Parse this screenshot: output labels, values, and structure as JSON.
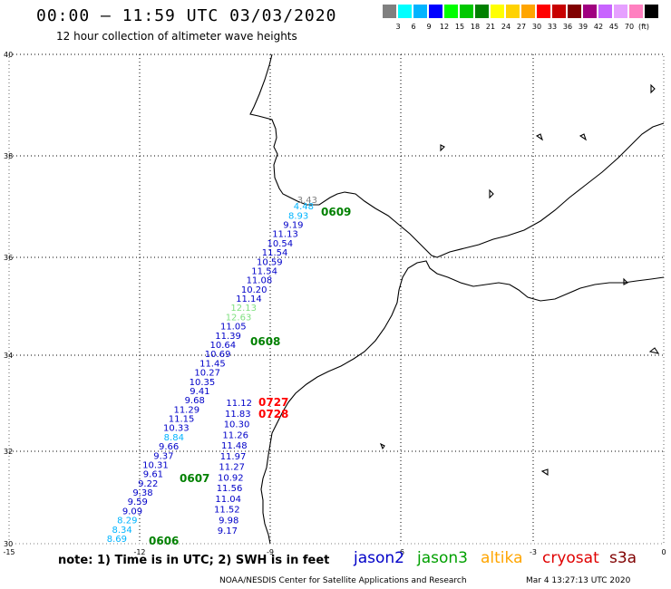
{
  "header": {
    "title": "00:00 – 11:59 UTC 03/03/2020",
    "subtitle": "12 hour collection of altimeter wave heights"
  },
  "colorbar": {
    "colors": [
      "#808080",
      "#00ffff",
      "#00b4ff",
      "#0000ff",
      "#00ff00",
      "#00c800",
      "#008000",
      "#ffff00",
      "#ffd200",
      "#ffa500",
      "#ff0000",
      "#c80000",
      "#800000",
      "#a00080",
      "#c864ff",
      "#e6a0ff",
      "#ff80c0",
      "#000000"
    ],
    "labels": [
      "3",
      "6",
      "9",
      "12",
      "15",
      "18",
      "21",
      "24",
      "27",
      "30",
      "33",
      "36",
      "39",
      "42",
      "45",
      "70",
      "(ft)"
    ]
  },
  "axes": {
    "lat_labels": [
      "40",
      "38",
      "36",
      "34",
      "32",
      "30"
    ],
    "lon_labels": [
      "-15",
      "-12",
      "-9",
      "-6",
      "-3",
      "0"
    ]
  },
  "map_data": {
    "lon_range": [
      -15,
      0
    ],
    "lat_range": [
      30,
      40
    ],
    "left_track": [
      {
        "lat": 36.92,
        "value": "3.43",
        "color": "#808080"
      },
      {
        "lat": 36.78,
        "value": "4.48",
        "color": "#00b4ff"
      },
      {
        "lat": 36.58,
        "value": "8.93",
        "color": "#00b4ff"
      },
      {
        "lat": 36.38,
        "value": "9.19",
        "color": "#0000c8"
      },
      {
        "lat": 36.18,
        "value": "11.13",
        "color": "#0000c8"
      },
      {
        "lat": 35.98,
        "value": "10.54",
        "color": "#0000c8"
      },
      {
        "lat": 35.78,
        "value": "11.54",
        "color": "#0000c8"
      },
      {
        "lat": 35.58,
        "value": "10.59",
        "color": "#0000c8"
      },
      {
        "lat": 35.38,
        "value": "11.54",
        "color": "#0000c8"
      },
      {
        "lat": 35.18,
        "value": "11.08",
        "color": "#0000c8"
      },
      {
        "lat": 34.98,
        "value": "10.20",
        "color": "#0000c8"
      },
      {
        "lat": 34.78,
        "value": "11.14",
        "color": "#0000c8"
      },
      {
        "lat": 34.58,
        "value": "12.13",
        "color": "#80e080"
      },
      {
        "lat": 34.38,
        "value": "12.63",
        "color": "#80e080"
      },
      {
        "lat": 34.18,
        "value": "11.05",
        "color": "#0000c8"
      },
      {
        "lat": 33.98,
        "value": "11.39",
        "color": "#0000c8"
      },
      {
        "lat": 33.78,
        "value": "10.64",
        "color": "#0000c8"
      },
      {
        "lat": 33.58,
        "value": "10.69",
        "color": "#0000c8"
      },
      {
        "lat": 33.38,
        "value": "11.45",
        "color": "#0000c8"
      },
      {
        "lat": 33.18,
        "value": "10.27",
        "color": "#0000c8"
      },
      {
        "lat": 32.98,
        "value": "10.35",
        "color": "#0000c8"
      },
      {
        "lat": 32.78,
        "value": "9.41",
        "color": "#0000c8"
      },
      {
        "lat": 32.58,
        "value": "9.68",
        "color": "#0000c8"
      },
      {
        "lat": 32.38,
        "value": "11.29",
        "color": "#0000c8"
      },
      {
        "lat": 32.18,
        "value": "11.15",
        "color": "#0000c8"
      },
      {
        "lat": 31.98,
        "value": "10.33",
        "color": "#0000c8"
      },
      {
        "lat": 31.78,
        "value": "8.84",
        "color": "#00b4ff"
      },
      {
        "lat": 31.58,
        "value": "9.66",
        "color": "#0000c8"
      },
      {
        "lat": 31.38,
        "value": "9.37",
        "color": "#0000c8"
      },
      {
        "lat": 31.18,
        "value": "10.31",
        "color": "#0000c8"
      },
      {
        "lat": 30.98,
        "value": "9.61",
        "color": "#0000c8"
      },
      {
        "lat": 30.78,
        "value": "9.22",
        "color": "#0000c8"
      },
      {
        "lat": 30.58,
        "value": "9.38",
        "color": "#0000c8"
      },
      {
        "lat": 30.38,
        "value": "9.59",
        "color": "#0000c8"
      },
      {
        "lat": 30.18,
        "value": "9.09",
        "color": "#0000c8"
      },
      {
        "lat": 29.98,
        "value": "8.29",
        "color": "#00b4ff"
      },
      {
        "lat": 29.78,
        "value": "8.34",
        "color": "#00b4ff"
      },
      {
        "lat": 29.58,
        "value": "8.69",
        "color": "#00b4ff"
      }
    ],
    "right_track": [
      {
        "lat": 32.58,
        "value": "11.12",
        "color": "#0000c8"
      },
      {
        "lat": 32.38,
        "value": "11.83",
        "color": "#0000c8"
      },
      {
        "lat": 32.18,
        "value": "10.30",
        "color": "#0000c8"
      },
      {
        "lat": 31.98,
        "value": "11.26",
        "color": "#0000c8"
      },
      {
        "lat": 31.78,
        "value": "11.48",
        "color": "#0000c8"
      },
      {
        "lat": 31.58,
        "value": "11.97",
        "color": "#0000c8"
      },
      {
        "lat": 31.38,
        "value": "11.27",
        "color": "#0000c8"
      },
      {
        "lat": 31.18,
        "value": "10.92",
        "color": "#0000c8"
      },
      {
        "lat": 30.98,
        "value": "11.56",
        "color": "#0000c8"
      },
      {
        "lat": 30.78,
        "value": "11.04",
        "color": "#0000c8"
      },
      {
        "lat": 30.58,
        "value": "11.52",
        "color": "#0000c8"
      },
      {
        "lat": 30.38,
        "value": "9.98",
        "color": "#0000c8"
      },
      {
        "lat": 30.18,
        "value": "9.17",
        "color": "#0000c8"
      }
    ],
    "pass_times": [
      {
        "label": "0609",
        "color": "#008000"
      },
      {
        "label": "0608",
        "color": "#008000"
      },
      {
        "label": "0727",
        "color": "#ff0000"
      },
      {
        "label": "0728",
        "color": "#ff0000"
      },
      {
        "label": "0607",
        "color": "#008000"
      },
      {
        "label": "0606",
        "color": "#008000"
      }
    ]
  },
  "note": "note:  1) Time is in UTC;  2) SWH is in feet",
  "legend": [
    {
      "label": "jason2",
      "color": "#0000c8"
    },
    {
      "label": "jason3",
      "color": "#00a000"
    },
    {
      "label": "altika",
      "color": "#ffa500"
    },
    {
      "label": "cryosat",
      "color": "#e00000"
    },
    {
      "label": "s3a",
      "color": "#800000"
    }
  ],
  "footer": {
    "credit": "NOAA/NESDIS Center for Satellite Applications and Research",
    "timestamp": "Mar  4 13:27:13 UTC 2020"
  }
}
